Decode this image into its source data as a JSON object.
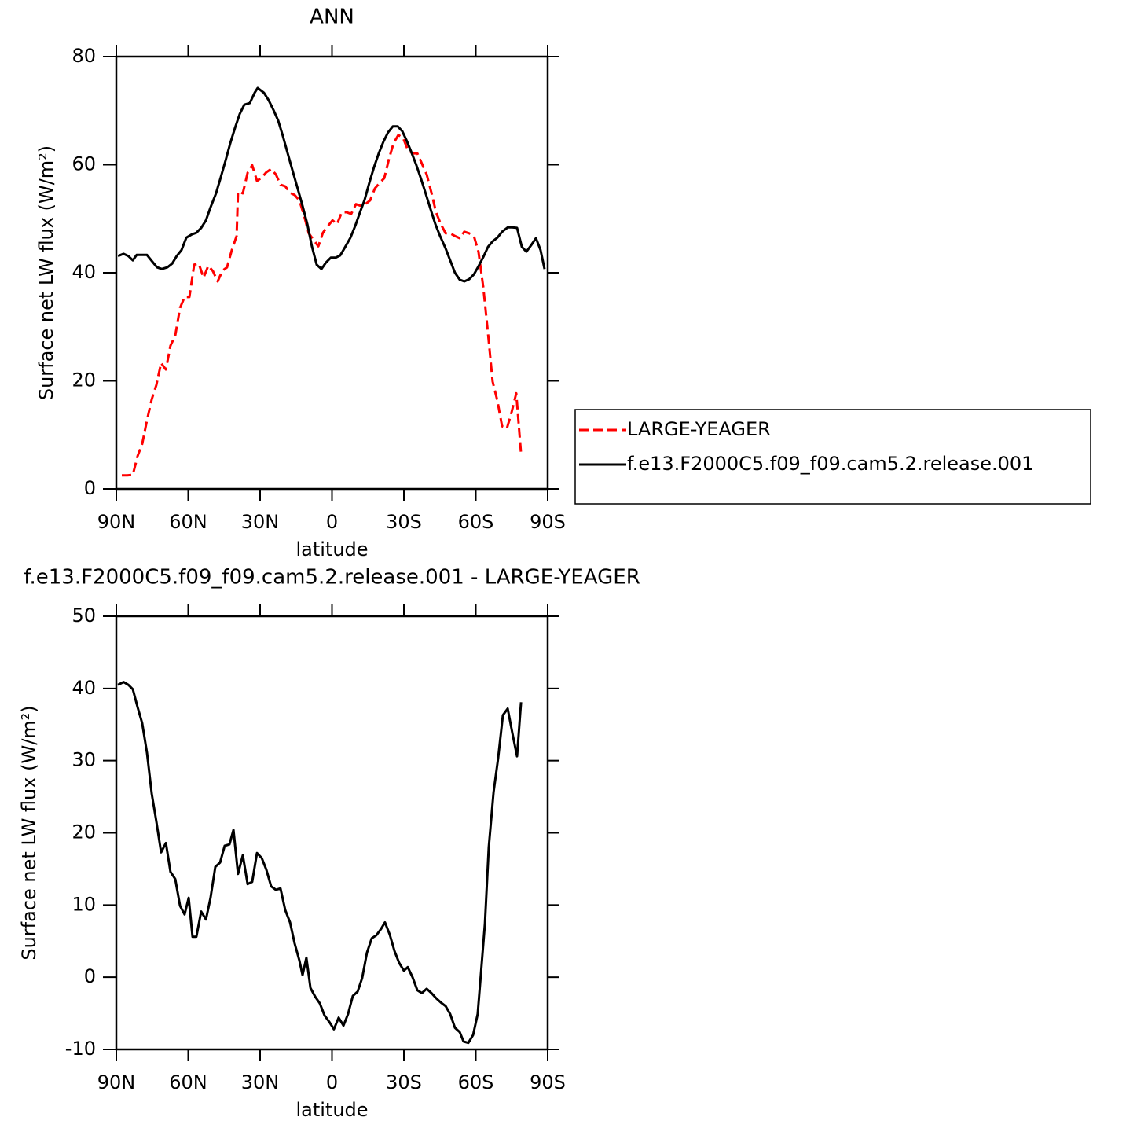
{
  "chart_data": [
    {
      "type": "line",
      "title": "ANN",
      "x_label": "latitude",
      "y_label": "Surface net LW flux (W/m²)",
      "xlim": [
        90,
        -90
      ],
      "xticks": [
        {
          "value": 90,
          "label": "90N"
        },
        {
          "value": 60,
          "label": "60N"
        },
        {
          "value": 30,
          "label": "30N"
        },
        0,
        {
          "value": -30,
          "label": "30S"
        },
        {
          "value": -60,
          "label": "60S"
        },
        {
          "value": -90,
          "label": "90S"
        }
      ],
      "ylim": [
        0,
        80
      ],
      "yticks": [
        0,
        20,
        40,
        60,
        80
      ],
      "legend": "right",
      "series": [
        {
          "name": "LARGE-YEAGER",
          "color": "#ff0000",
          "dash": true,
          "x": [
            87.7,
            85.4,
            83.1,
            81.1,
            79.2,
            77.2,
            75.2,
            73.3,
            71.3,
            69.3,
            67.4,
            65.4,
            63.4,
            61.5,
            59.5,
            57.5,
            55.6,
            53.6,
            51.6,
            49.7,
            47.7,
            45.7,
            43.8,
            41.8,
            39.8,
            39.2,
            37.2,
            35.2,
            33.3,
            31.3,
            29.3,
            27.4,
            25.4,
            23.4,
            21.5,
            19.5,
            17.5,
            15.6,
            13.6,
            11.6,
            9.7,
            7.7,
            5.7,
            3.8,
            1.8,
            -0.2,
            -2.1,
            -4.1,
            -6.1,
            -8,
            -10,
            -12,
            -13.9,
            -15.9,
            -17.9,
            -19.8,
            -21.8,
            -23.8,
            -25.7,
            -27.7,
            -29.7,
            -31.6,
            -33.6,
            -35.6,
            -37.5,
            -39.5,
            -41.5,
            -43.4,
            -45.4,
            -47.4,
            -49.3,
            -51.3,
            -53.3,
            -55.2,
            -57.2,
            -59.2,
            -61.1,
            -63.1,
            -65.1,
            -67,
            -69,
            -71,
            -73,
            -74.9,
            -76.9,
            -78.9
          ],
          "values": [
            2.5,
            2.5,
            2.6,
            6.1,
            8.3,
            12.7,
            16.6,
            19.2,
            23.3,
            22.1,
            26.5,
            28.4,
            33.5,
            35.5,
            35.5,
            41.5,
            41.7,
            39.1,
            41.3,
            40.3,
            38.4,
            40.4,
            41,
            44.2,
            46.8,
            55,
            54.7,
            58.5,
            59.9,
            57,
            57.6,
            58.6,
            59.2,
            58.2,
            56.3,
            56,
            54.8,
            54.4,
            53.4,
            50.5,
            47.3,
            46.1,
            44.9,
            47.4,
            48.6,
            49.7,
            49,
            51.2,
            51.2,
            50.9,
            52.7,
            52.4,
            52.7,
            53.4,
            55.6,
            56.6,
            57.5,
            61.1,
            64,
            65.5,
            64.9,
            62.8,
            62.1,
            62.1,
            60.2,
            58.2,
            54.8,
            51.2,
            49,
            47.3,
            47.3,
            46.8,
            46.4,
            47.6,
            47.3,
            46.8,
            43.9,
            37.4,
            28.7,
            19.9,
            16.3,
            11.6,
            11.2,
            14.1,
            17.7,
            6.5
          ]
        },
        {
          "name": "f.e13.F2000C5.f09_f09.cam5.2.release.001",
          "color": "#000000",
          "dash": false,
          "x": [
            89.3,
            87,
            85,
            83.1,
            81.5,
            79.2,
            77.2,
            75.2,
            73,
            71,
            68.7,
            66.7,
            64.8,
            62.8,
            60.8,
            58.5,
            56.6,
            54.6,
            52.6,
            50.7,
            48.4,
            46.4,
            44.4,
            42.5,
            40.5,
            38.5,
            36.6,
            34.3,
            32.3,
            31,
            28.4,
            26.4,
            24.4,
            22.5,
            20.5,
            18.5,
            16.6,
            14.6,
            12.3,
            10.3,
            8.4,
            6.4,
            4.4,
            2.5,
            0.5,
            -1.5,
            -3.4,
            -5.4,
            -7.7,
            -9.7,
            -11.6,
            -13.6,
            -15.6,
            -17.5,
            -19.5,
            -21.5,
            -23.4,
            -25.4,
            -27.4,
            -29.3,
            -31.3,
            -33.3,
            -35.2,
            -37.2,
            -39.2,
            -41.1,
            -43.1,
            -45.1,
            -47.4,
            -49.3,
            -51.3,
            -53.3,
            -55.2,
            -57.2,
            -59.2,
            -61.1,
            -63.1,
            -65.1,
            -67,
            -69,
            -71,
            -73.3,
            -75.2,
            -77.2,
            -79.2,
            -81.1,
            -83.1,
            -85.1,
            -87,
            -88.7
          ],
          "values": [
            43.1,
            43.5,
            43.1,
            42.3,
            43.3,
            43.3,
            43.3,
            42.2,
            41,
            40.7,
            41,
            41.7,
            43.1,
            44.2,
            46.5,
            47.1,
            47.4,
            48.3,
            49.7,
            52.1,
            54.7,
            57.7,
            60.8,
            63.9,
            66.8,
            69.4,
            71.1,
            71.4,
            73.3,
            74.2,
            73.3,
            71.9,
            70.1,
            68.2,
            65.3,
            62.1,
            59.1,
            56,
            52.4,
            49,
            44.9,
            41.5,
            40.7,
            41.9,
            42.8,
            42.8,
            43.2,
            44.7,
            46.5,
            48.7,
            51.1,
            53.5,
            56.7,
            59.5,
            62.1,
            64.3,
            66,
            67.1,
            67.1,
            66.2,
            64.3,
            62.1,
            59.9,
            57.3,
            54.5,
            51.8,
            49,
            46.8,
            44.5,
            42.3,
            40,
            38.7,
            38.4,
            38.8,
            39.7,
            41.2,
            42.9,
            44.8,
            45.8,
            46.5,
            47.6,
            48.4,
            48.4,
            48.3,
            44.8,
            43.9,
            45.1,
            46.4,
            44.2,
            40.7
          ]
        }
      ]
    },
    {
      "type": "line",
      "title": "f.e13.F2000C5.f09_f09.cam5.2.release.001 - LARGE-YEAGER",
      "x_label": "latitude",
      "y_label": "Surface net LW flux (W/m²)",
      "xlim": [
        90,
        -90
      ],
      "xticks": [
        {
          "value": 90,
          "label": "90N"
        },
        {
          "value": 60,
          "label": "60N"
        },
        {
          "value": 30,
          "label": "30N"
        },
        0,
        {
          "value": -30,
          "label": "30S"
        },
        {
          "value": -60,
          "label": "60S"
        },
        {
          "value": -90,
          "label": "90S"
        }
      ],
      "ylim": [
        -10,
        50
      ],
      "yticks": [
        -10,
        0,
        10,
        20,
        30,
        40,
        50
      ],
      "series": [
        {
          "color": "#000000",
          "dash": false,
          "x": [
            89.3,
            87,
            85,
            83.1,
            81.1,
            79.2,
            77.2,
            75.2,
            73.3,
            71.3,
            69.3,
            67.4,
            65.4,
            63.4,
            61.5,
            59.8,
            58.2,
            56.6,
            54.6,
            52.6,
            50.7,
            48.7,
            46.7,
            44.8,
            42.8,
            41.1,
            39.2,
            37.2,
            35.2,
            33.3,
            31.3,
            29.3,
            27.4,
            25.4,
            23.4,
            21.5,
            19.5,
            17.5,
            15.6,
            13.6,
            12.3,
            10.7,
            9,
            7,
            5.1,
            3.1,
            1.1,
            -0.8,
            -2.8,
            -4.8,
            -6.7,
            -8.7,
            -10.7,
            -12.6,
            -14.6,
            -16.6,
            -18.5,
            -20.5,
            -22.1,
            -24.1,
            -26.1,
            -28,
            -30,
            -31.6,
            -33.6,
            -35.6,
            -37.5,
            -39.5,
            -41.5,
            -43.4,
            -45.4,
            -47.4,
            -49.3,
            -51.3,
            -53.3,
            -54.9,
            -56.9,
            -58.9,
            -60.8,
            -62.1,
            -63.8,
            -65.4,
            -67.4,
            -69.3,
            -71.3,
            -73.3,
            -75.2,
            -77.2,
            -78.9
          ],
          "values": [
            40.5,
            40.9,
            40.5,
            39.9,
            37.4,
            35.2,
            31.1,
            25.4,
            21.6,
            17.3,
            18.6,
            14.6,
            13.6,
            9.9,
            8.7,
            11,
            5.6,
            5.6,
            9.1,
            8,
            11,
            15.3,
            15.9,
            18.2,
            18.4,
            20.4,
            14.3,
            16.9,
            12.9,
            13.2,
            17.2,
            16.5,
            14.9,
            12.6,
            12.1,
            12.3,
            9.3,
            7.6,
            4.7,
            2.3,
            0.3,
            2.7,
            -1.5,
            -2.7,
            -3.6,
            -5.3,
            -6.2,
            -7.2,
            -5.6,
            -6.7,
            -5.1,
            -2.6,
            -2,
            -0.1,
            3.4,
            5.4,
            5.8,
            6.7,
            7.6,
            5.9,
            3.6,
            2,
            0.9,
            1.4,
            0,
            -1.8,
            -2.2,
            -1.6,
            -2.2,
            -2.9,
            -3.5,
            -4,
            -5.1,
            -7,
            -7.6,
            -8.9,
            -9.1,
            -8,
            -5.1,
            0.3,
            7.4,
            18,
            25.6,
            30.3,
            36.3,
            37.2,
            33.9,
            30.6,
            38.1
          ]
        }
      ]
    }
  ]
}
